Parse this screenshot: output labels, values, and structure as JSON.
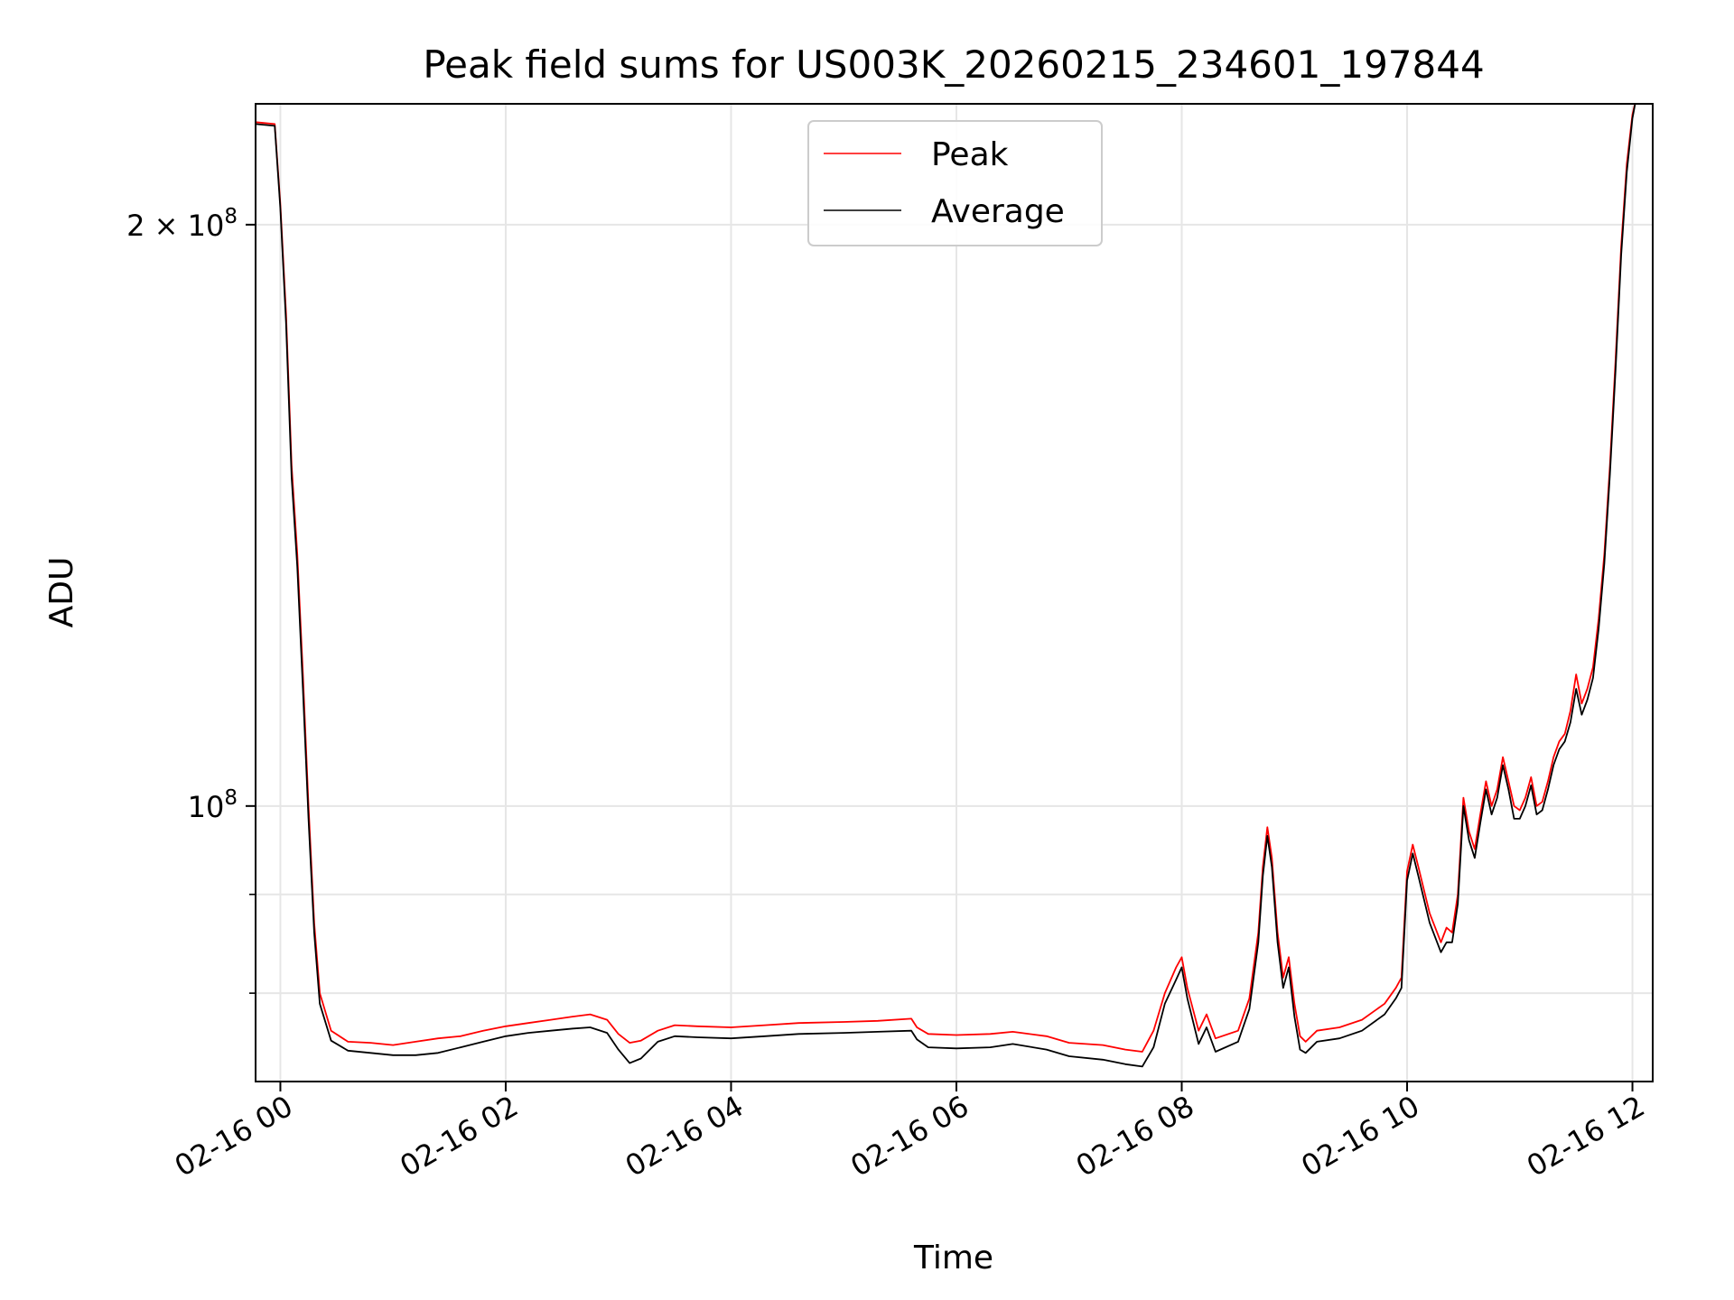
{
  "chart_data": {
    "type": "line",
    "title": "Peak field sums for US003K_20260215_234601_197844",
    "xlabel": "Time",
    "ylabel": "ADU",
    "yscale": "log",
    "ylim": [
      72000000,
      231000000
    ],
    "xlim": [
      -0.22,
      12.18
    ],
    "x_unit": "hours since 02-16 00:00",
    "grid": true,
    "legend_position": "top-center",
    "x_ticks": [
      {
        "value": 0,
        "label": "02-16 00"
      },
      {
        "value": 2,
        "label": "02-16 02"
      },
      {
        "value": 4,
        "label": "02-16 04"
      },
      {
        "value": 6,
        "label": "02-16 06"
      },
      {
        "value": 8,
        "label": "02-16 08"
      },
      {
        "value": 10,
        "label": "02-16 10"
      },
      {
        "value": 12,
        "label": "02-16 12"
      }
    ],
    "y_major_ticks": [
      {
        "value": 100000000,
        "base": "10",
        "exp": "8",
        "coef": ""
      },
      {
        "value": 200000000,
        "base": "10",
        "exp": "8",
        "coef": "2 × "
      }
    ],
    "y_minor_ticks": [
      80000000,
      90000000
    ],
    "series": [
      {
        "name": "Peak",
        "color": "#ff0000",
        "x": [
          -0.22,
          -0.05,
          0.0,
          0.05,
          0.1,
          0.15,
          0.2,
          0.25,
          0.3,
          0.35,
          0.45,
          0.6,
          0.8,
          1.0,
          1.2,
          1.4,
          1.6,
          1.8,
          2.0,
          2.2,
          2.4,
          2.6,
          2.75,
          2.9,
          3.0,
          3.1,
          3.2,
          3.35,
          3.5,
          3.7,
          4.0,
          4.3,
          4.6,
          5.0,
          5.3,
          5.6,
          5.65,
          5.75,
          6.0,
          6.3,
          6.5,
          6.8,
          7.0,
          7.3,
          7.5,
          7.65,
          7.75,
          7.85,
          7.95,
          8.0,
          8.05,
          8.15,
          8.22,
          8.3,
          8.5,
          8.6,
          8.68,
          8.72,
          8.76,
          8.8,
          8.85,
          8.9,
          8.95,
          9.0,
          9.05,
          9.1,
          9.2,
          9.4,
          9.6,
          9.8,
          9.9,
          9.95,
          10.0,
          10.05,
          10.1,
          10.2,
          10.3,
          10.35,
          10.4,
          10.45,
          10.5,
          10.55,
          10.6,
          10.65,
          10.7,
          10.75,
          10.8,
          10.85,
          10.9,
          10.95,
          11.0,
          11.05,
          11.1,
          11.15,
          11.2,
          11.25,
          11.3,
          11.35,
          11.4,
          11.45,
          11.5,
          11.55,
          11.6,
          11.65,
          11.7,
          11.75,
          11.8,
          11.85,
          11.9,
          11.95,
          12.0,
          12.03
        ],
        "values": [
          226000000,
          225500000,
          205000000,
          180000000,
          150000000,
          135000000,
          117000000,
          100000000,
          87000000,
          80000000,
          76500000,
          75500000,
          75400000,
          75200000,
          75500000,
          75800000,
          76000000,
          76500000,
          76900000,
          77200000,
          77500000,
          77800000,
          78000000,
          77500000,
          76200000,
          75400000,
          75600000,
          76500000,
          77000000,
          76900000,
          76800000,
          77000000,
          77200000,
          77300000,
          77400000,
          77600000,
          76800000,
          76200000,
          76100000,
          76200000,
          76400000,
          76000000,
          75400000,
          75200000,
          74800000,
          74600000,
          76500000,
          80000000,
          82500000,
          83500000,
          80500000,
          76500000,
          78000000,
          75800000,
          76500000,
          79500000,
          86000000,
          93000000,
          97500000,
          94000000,
          86000000,
          81500000,
          83500000,
          79000000,
          76000000,
          75500000,
          76500000,
          76800000,
          77500000,
          79000000,
          80500000,
          81500000,
          92500000,
          95500000,
          93000000,
          88000000,
          85000000,
          86500000,
          86000000,
          90000000,
          101000000,
          97000000,
          95000000,
          99000000,
          103000000,
          100000000,
          102000000,
          106000000,
          103000000,
          100000000,
          99500000,
          101000000,
          103500000,
          100000000,
          100500000,
          103000000,
          106000000,
          108000000,
          109000000,
          112000000,
          117000000,
          113000000,
          115000000,
          118000000,
          125000000,
          135000000,
          150000000,
          170000000,
          195000000,
          215000000,
          228000000,
          232000000
        ]
      },
      {
        "name": "Average",
        "color": "#000000",
        "x": [
          -0.22,
          -0.05,
          0.0,
          0.05,
          0.1,
          0.15,
          0.2,
          0.25,
          0.3,
          0.35,
          0.45,
          0.6,
          0.8,
          1.0,
          1.2,
          1.4,
          1.6,
          1.8,
          2.0,
          2.2,
          2.4,
          2.6,
          2.75,
          2.9,
          3.0,
          3.1,
          3.2,
          3.35,
          3.5,
          3.7,
          4.0,
          4.3,
          4.6,
          5.0,
          5.3,
          5.6,
          5.65,
          5.75,
          6.0,
          6.3,
          6.5,
          6.8,
          7.0,
          7.3,
          7.5,
          7.65,
          7.75,
          7.85,
          7.95,
          8.0,
          8.05,
          8.15,
          8.22,
          8.3,
          8.5,
          8.6,
          8.68,
          8.72,
          8.76,
          8.8,
          8.85,
          8.9,
          8.95,
          9.0,
          9.05,
          9.1,
          9.2,
          9.4,
          9.6,
          9.8,
          9.9,
          9.95,
          10.0,
          10.05,
          10.1,
          10.2,
          10.3,
          10.35,
          10.4,
          10.45,
          10.5,
          10.55,
          10.6,
          10.65,
          10.7,
          10.75,
          10.8,
          10.85,
          10.9,
          10.95,
          11.0,
          11.05,
          11.1,
          11.15,
          11.2,
          11.25,
          11.3,
          11.35,
          11.4,
          11.45,
          11.5,
          11.55,
          11.6,
          11.65,
          11.7,
          11.75,
          11.8,
          11.85,
          11.9,
          11.95,
          12.0,
          12.03
        ],
        "values": [
          225500000,
          225000000,
          204000000,
          178000000,
          148000000,
          133000000,
          115000000,
          98500000,
          86000000,
          79000000,
          75600000,
          74700000,
          74500000,
          74300000,
          74300000,
          74500000,
          75000000,
          75500000,
          76000000,
          76300000,
          76500000,
          76700000,
          76800000,
          76300000,
          74800000,
          73600000,
          74000000,
          75500000,
          76000000,
          75900000,
          75800000,
          76000000,
          76200000,
          76300000,
          76400000,
          76500000,
          75700000,
          75000000,
          74900000,
          75000000,
          75300000,
          74800000,
          74200000,
          73900000,
          73500000,
          73300000,
          75000000,
          79000000,
          81300000,
          82500000,
          79500000,
          75300000,
          76800000,
          74600000,
          75500000,
          78500000,
          85000000,
          92000000,
          96500000,
          93000000,
          85000000,
          80500000,
          82500000,
          77800000,
          74800000,
          74500000,
          75500000,
          75800000,
          76500000,
          78000000,
          79500000,
          80500000,
          91500000,
          94500000,
          92000000,
          87000000,
          84000000,
          85000000,
          85000000,
          89000000,
          100000000,
          96000000,
          94000000,
          98000000,
          102000000,
          99000000,
          101000000,
          105000000,
          102000000,
          98500000,
          98500000,
          100000000,
          102500000,
          99000000,
          99500000,
          102000000,
          105000000,
          107000000,
          108000000,
          110500000,
          115000000,
          111500000,
          113500000,
          116500000,
          123500000,
          133500000,
          148500000,
          168000000,
          193000000,
          213000000,
          227000000,
          232000000
        ]
      }
    ]
  }
}
